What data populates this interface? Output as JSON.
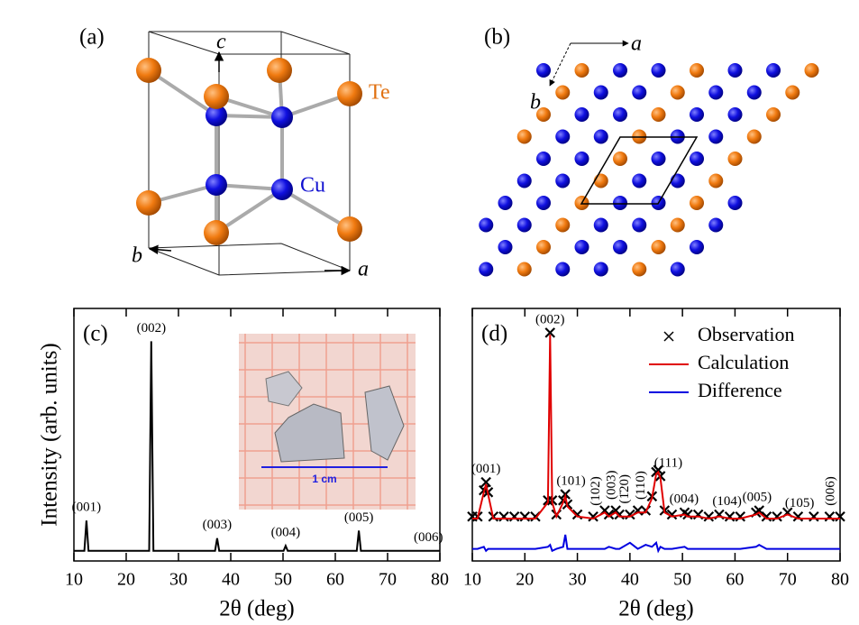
{
  "diagram_a": {
    "label": "(a)",
    "axis_labels": [
      "c",
      "b",
      "a"
    ],
    "atom_labels": [
      "Te",
      "Cu"
    ]
  },
  "diagram_b": {
    "label": "(b)",
    "axis_labels": [
      "a",
      "b"
    ]
  },
  "chart_data": [
    {
      "type": "line",
      "panel_label": "(c)",
      "y_label": "Intensity (arb. units)",
      "x_label": "2θ (deg)",
      "xlim": [
        10,
        80
      ],
      "xticks": [
        10,
        20,
        30,
        40,
        50,
        60,
        70,
        80
      ],
      "ylim": [
        0,
        100
      ],
      "color": "#000000",
      "x": [
        10,
        12.0,
        12.4,
        12.8,
        24.4,
        24.8,
        25.2,
        37.0,
        37.4,
        37.8,
        50.1,
        50.5,
        50.9,
        64.1,
        64.5,
        64.9,
        80
      ],
      "values": [
        4,
        4,
        16,
        4,
        4,
        87,
        4,
        4,
        9,
        4,
        4,
        6,
        4,
        4,
        12,
        4,
        4
      ],
      "peaks": [
        {
          "label": "(001)",
          "x": 12.4
        },
        {
          "label": "(002)",
          "x": 24.8
        },
        {
          "label": "(003)",
          "x": 37.4
        },
        {
          "label": "(004)",
          "x": 50.5
        },
        {
          "label": "(005)",
          "x": 64.5
        },
        {
          "label": "(006)",
          "x": 77.8
        }
      ],
      "inset": {
        "scale_label": "1 cm"
      }
    },
    {
      "type": "line",
      "panel_label": "(d)",
      "x_label": "2θ (deg)",
      "xlim": [
        10,
        80
      ],
      "xticks": [
        10,
        20,
        30,
        40,
        50,
        60,
        70,
        80
      ],
      "ylim": [
        -20,
        105
      ],
      "legend": "upper right",
      "x": [
        10,
        11,
        12.2,
        12.6,
        13.0,
        14,
        16,
        18,
        20,
        22,
        24.4,
        24.8,
        25.2,
        26,
        27.3,
        27.7,
        28.1,
        30,
        33,
        35.2,
        36,
        37.3,
        38,
        40,
        41.5,
        43,
        44.2,
        45.0,
        45.4,
        45.8,
        46.6,
        48,
        50.4,
        51,
        53,
        55,
        57,
        59,
        61,
        64,
        64.6,
        66,
        68,
        70,
        72,
        75,
        78,
        80
      ],
      "series": [
        {
          "name": "Observation",
          "color": "#000000",
          "mode": "markers",
          "values": [
            2,
            2,
            15,
            19,
            14,
            2,
            2,
            2,
            2,
            2,
            10,
            93,
            10,
            3,
            10,
            13,
            8,
            3,
            2,
            5,
            3,
            5,
            3,
            3,
            5,
            5,
            12,
            24,
            25,
            22,
            5,
            3,
            4,
            3,
            3,
            2,
            3,
            2,
            2,
            4,
            5,
            2,
            2,
            4,
            2,
            2,
            2,
            2
          ]
        },
        {
          "name": "Calculation",
          "color": "#e00000",
          "mode": "lines",
          "values": [
            1,
            1,
            14,
            18,
            13,
            1,
            1,
            1,
            1,
            1,
            9,
            92,
            9,
            2,
            9,
            12,
            7,
            2,
            1,
            4,
            2,
            4,
            2,
            2,
            4,
            4,
            11,
            23,
            24,
            21,
            4,
            2,
            3,
            2,
            2,
            1,
            2,
            1,
            1,
            3,
            4,
            1,
            1,
            3,
            1,
            1,
            1,
            1
          ]
        },
        {
          "name": "Difference",
          "color": "#0000e0",
          "mode": "lines",
          "values": [
            -14,
            -14,
            -13,
            -15,
            -14,
            -14,
            -14,
            -14,
            -14,
            -14,
            -13,
            -12,
            -15,
            -14,
            -13,
            -7,
            -14,
            -14,
            -14,
            -14,
            -13,
            -14,
            -14,
            -11,
            -14,
            -12,
            -13,
            -11,
            -15,
            -13,
            -14,
            -14,
            -13,
            -14,
            -14,
            -14,
            -14,
            -14,
            -14,
            -13,
            -12,
            -14,
            -14,
            -14,
            -14,
            -14,
            -14,
            -14
          ]
        }
      ],
      "peaks": [
        {
          "label": "(001)",
          "x": 12.6
        },
        {
          "label": "(002)",
          "x": 24.8
        },
        {
          "label": "(101)",
          "x": 28.8
        },
        {
          "label": "(102)",
          "x": 33.6,
          "vertical": true
        },
        {
          "label": "(003)",
          "x": 36.6,
          "vertical": true
        },
        {
          "label": "(1̄20)",
          "x": 39.1,
          "vertical": true
        },
        {
          "label": "(110)",
          "x": 42.2,
          "vertical": true
        },
        {
          "label": "(111)",
          "x": 47.3
        },
        {
          "label": "(004)",
          "x": 50.3
        },
        {
          "label": "(104)",
          "x": 58.5
        },
        {
          "label": "(005)",
          "x": 64.2
        },
        {
          "label": "(105)",
          "x": 72.3
        },
        {
          "label": "(006)",
          "x": 78.3,
          "vertical": true
        }
      ]
    }
  ]
}
